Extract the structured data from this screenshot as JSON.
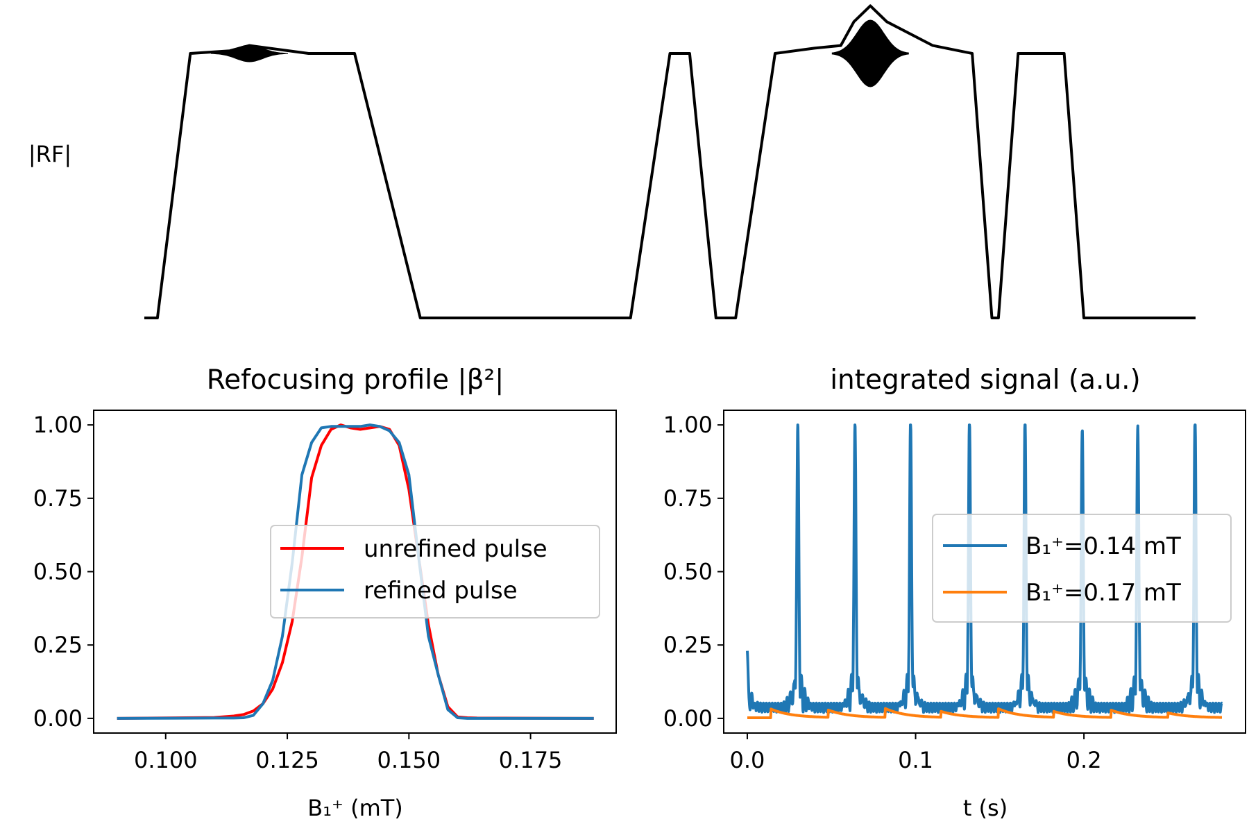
{
  "chart_data": [
    {
      "type": "line",
      "ylabel": "|RF|",
      "axes_visible": false,
      "x": [
        0.0,
        0.2,
        0.7,
        1.3,
        1.6,
        2.5,
        3.2,
        4.2,
        5.0,
        6.0,
        6.8,
        7.4,
        8.0,
        8.3,
        8.7,
        9.0,
        9.6,
        10.2,
        10.6,
        10.8,
        11.05,
        11.3,
        12.0,
        12.4,
        12.6,
        12.9,
        13.0,
        13.3,
        14.0,
        14.3,
        14.5,
        15.0,
        16.0
      ],
      "series": [
        {
          "values": [
            0,
            0,
            1,
            1.01,
            1.03,
            1,
            1,
            0,
            0,
            0,
            0,
            0,
            1,
            1,
            0,
            0,
            1,
            1.02,
            1.03,
            1.12,
            1.18,
            1.12,
            1.03,
            1.01,
            1,
            0,
            0,
            1,
            1,
            0,
            0,
            0,
            0
          ],
          "color": "#000000",
          "envelope": {
            "center_index_1": 4,
            "center_index_2": 20,
            "amplitude_1": 0.04,
            "amplitude_2": 0.12
          }
        }
      ]
    },
    {
      "type": "line",
      "title": "Refocusing profile |β²|",
      "xlabel": "B₁⁺ (mT)",
      "xlim": [
        0.0852,
        0.1926
      ],
      "ylim": [
        -0.05,
        1.05
      ],
      "xticks": [
        "0.100",
        "0.125",
        "0.150",
        "0.175"
      ],
      "yticks": [
        "0.00",
        "0.25",
        "0.50",
        "0.75",
        "1.00"
      ],
      "x": [
        0.09,
        0.11,
        0.114,
        0.116,
        0.118,
        0.12,
        0.122,
        0.124,
        0.126,
        0.128,
        0.13,
        0.132,
        0.134,
        0.136,
        0.138,
        0.14,
        0.142,
        0.144,
        0.146,
        0.148,
        0.15,
        0.152,
        0.154,
        0.156,
        0.158,
        0.16,
        0.162,
        0.164,
        0.188
      ],
      "series": [
        {
          "name": "unrefined pulse",
          "color": "#ff0000",
          "values": [
            0.0,
            0.003,
            0.008,
            0.013,
            0.025,
            0.05,
            0.1,
            0.19,
            0.33,
            0.55,
            0.82,
            0.93,
            0.985,
            1.0,
            0.99,
            0.985,
            0.99,
            0.995,
            0.985,
            0.93,
            0.78,
            0.55,
            0.32,
            0.15,
            0.04,
            0.005,
            0.002,
            0.001,
            0.0
          ]
        },
        {
          "name": "refined pulse",
          "color": "#1f77b4",
          "values": [
            0.0,
            0.001,
            0.001,
            0.002,
            0.01,
            0.05,
            0.13,
            0.28,
            0.53,
            0.83,
            0.94,
            0.99,
            0.995,
            0.995,
            0.995,
            0.995,
            1.0,
            0.995,
            0.98,
            0.94,
            0.83,
            0.55,
            0.28,
            0.15,
            0.03,
            0.002,
            0.0,
            0.0,
            0.0
          ]
        }
      ],
      "legend": "center-right"
    },
    {
      "type": "line",
      "title": "integrated signal (a.u.)",
      "xlabel": "t (s)",
      "xlim": [
        -0.014,
        0.296
      ],
      "ylim": [
        -0.05,
        1.05
      ],
      "xticks": [
        "0.0",
        "0.1",
        "0.2"
      ],
      "yticks": [
        "0.00",
        "0.25",
        "0.50",
        "0.75",
        "1.00"
      ],
      "series": [
        {
          "name": "B₁⁺=0.14 mT",
          "color": "#1f77b4",
          "peak_times": [
            0.03,
            0.064,
            0.097,
            0.132,
            0.165,
            0.199,
            0.232,
            0.266
          ],
          "peak_values": [
            0.99,
            0.98,
            0.99,
            1.0,
            0.99,
            0.98,
            0.99,
            1.0
          ],
          "initial_value": 0.21,
          "t_end": 0.282
        },
        {
          "name": "B₁⁺=0.17 mT",
          "color": "#ff7f0e",
          "bump_times": [
            0.014,
            0.048,
            0.082,
            0.115,
            0.149,
            0.182,
            0.216,
            0.25
          ],
          "bump_values": [
            0.03,
            0.025,
            0.03,
            0.02,
            0.03,
            0.02,
            0.025,
            0.015
          ],
          "t_end": 0.282
        }
      ],
      "legend": "center-right"
    }
  ]
}
